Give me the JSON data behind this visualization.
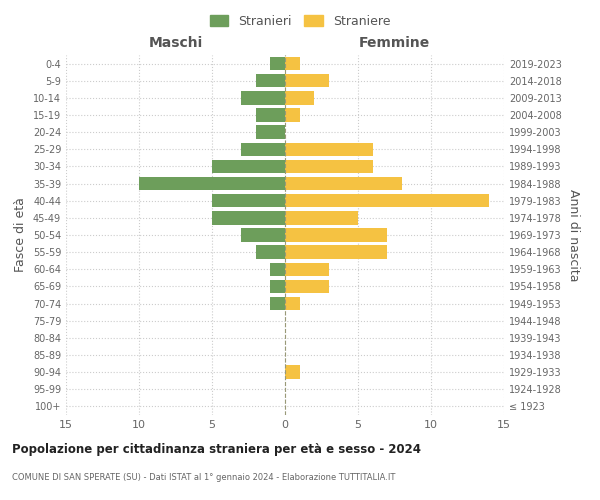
{
  "age_groups": [
    "100+",
    "95-99",
    "90-94",
    "85-89",
    "80-84",
    "75-79",
    "70-74",
    "65-69",
    "60-64",
    "55-59",
    "50-54",
    "45-49",
    "40-44",
    "35-39",
    "30-34",
    "25-29",
    "20-24",
    "15-19",
    "10-14",
    "5-9",
    "0-4"
  ],
  "birth_years": [
    "≤ 1923",
    "1924-1928",
    "1929-1933",
    "1934-1938",
    "1939-1943",
    "1944-1948",
    "1949-1953",
    "1954-1958",
    "1959-1963",
    "1964-1968",
    "1969-1973",
    "1974-1978",
    "1979-1983",
    "1984-1988",
    "1989-1993",
    "1994-1998",
    "1999-2003",
    "2004-2008",
    "2009-2013",
    "2014-2018",
    "2019-2023"
  ],
  "males": [
    0,
    0,
    0,
    0,
    0,
    0,
    1,
    1,
    1,
    2,
    3,
    5,
    5,
    10,
    5,
    3,
    2,
    2,
    3,
    2,
    1
  ],
  "females": [
    0,
    0,
    1,
    0,
    0,
    0,
    1,
    3,
    3,
    7,
    7,
    5,
    14,
    8,
    6,
    6,
    0,
    1,
    2,
    3,
    1
  ],
  "male_color": "#6d9e5b",
  "female_color": "#f5c242",
  "male_label": "Stranieri",
  "female_label": "Straniere",
  "title_main": "Popolazione per cittadinanza straniera per età e sesso - 2024",
  "title_sub": "COMUNE DI SAN SPERATE (SU) - Dati ISTAT al 1° gennaio 2024 - Elaborazione TUTTITALIA.IT",
  "xlabel_left": "Maschi",
  "xlabel_right": "Femmine",
  "ylabel_left": "Fasce di età",
  "ylabel_right": "Anni di nascita",
  "xlim": 15,
  "bg_color": "#ffffff",
  "grid_color": "#cccccc"
}
